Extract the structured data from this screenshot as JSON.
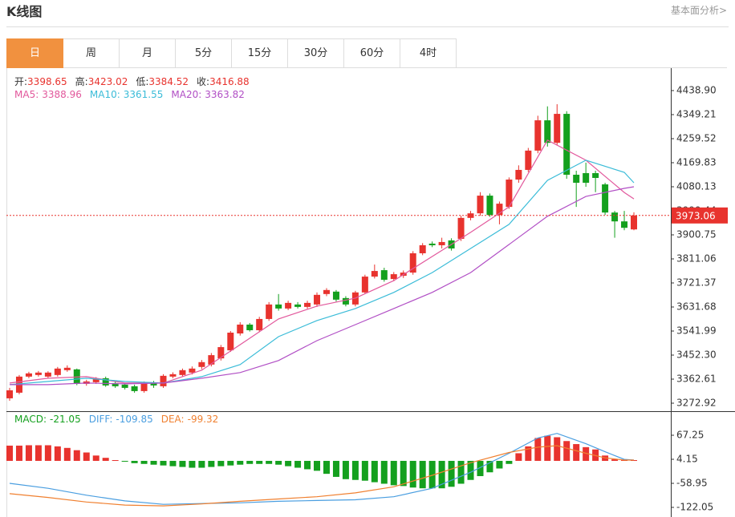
{
  "header": {
    "title": "K线图",
    "link": "基本面分析>"
  },
  "tabs": {
    "items": [
      "日",
      "周",
      "月",
      "5分",
      "15分",
      "30分",
      "60分",
      "4时"
    ],
    "active": 0
  },
  "chart_data": [
    {
      "type": "candlestick",
      "ohlc_info": [
        {
          "label": "开:",
          "value": 3398.65
        },
        {
          "label": "高:",
          "value": 3423.02
        },
        {
          "label": "低:",
          "value": 3384.52
        },
        {
          "label": "收:",
          "value": 3416.88
        }
      ],
      "open": [
        3291,
        3312,
        3372,
        3378,
        3372,
        3378,
        3396,
        3399,
        3345,
        3351,
        3366,
        3348,
        3342,
        3336,
        3318,
        3348,
        3336,
        3372,
        3378,
        3387,
        3408,
        3417,
        3440,
        3470,
        3533,
        3566,
        3545,
        3587,
        3641,
        3626,
        3641,
        3632,
        3641,
        3680,
        3689,
        3665,
        3641,
        3686,
        3745,
        3769,
        3736,
        3748,
        3760,
        3832,
        3868,
        3862,
        3880,
        3886,
        3964,
        3981,
        4047,
        3975,
        4005,
        4107,
        4143,
        4215,
        4328,
        4244,
        4352,
        4125,
        4131,
        4131,
        4089,
        3984,
        3951,
        3921
      ],
      "high": [
        3330,
        3378,
        3390,
        3393,
        3392,
        3408,
        3414,
        3402,
        3360,
        3370,
        3372,
        3354,
        3348,
        3342,
        3354,
        3356,
        3381,
        3388,
        3402,
        3410,
        3434,
        3460,
        3490,
        3542,
        3575,
        3572,
        3595,
        3650,
        3680,
        3655,
        3650,
        3655,
        3686,
        3702,
        3695,
        3672,
        3692,
        3752,
        3790,
        3778,
        3762,
        3768,
        3840,
        3870,
        3876,
        3890,
        3888,
        3972,
        3990,
        4060,
        4055,
        4025,
        4115,
        4160,
        4225,
        4345,
        4380,
        4388,
        4362,
        4140,
        4170,
        4140,
        4095,
        3990,
        3990,
        3985
      ],
      "low": [
        3282,
        3306,
        3366,
        3372,
        3366,
        3372,
        3390,
        3340,
        3338,
        3345,
        3334,
        3330,
        3324,
        3312,
        3312,
        3330,
        3330,
        3366,
        3372,
        3380,
        3400,
        3410,
        3432,
        3464,
        3525,
        3540,
        3538,
        3580,
        3618,
        3620,
        3626,
        3625,
        3632,
        3672,
        3652,
        3634,
        3634,
        3680,
        3738,
        3726,
        3728,
        3740,
        3752,
        3825,
        3855,
        3850,
        3842,
        3878,
        3955,
        3972,
        3968,
        3940,
        3998,
        4095,
        4135,
        4205,
        4230,
        4236,
        4110,
        4005,
        4080,
        4060,
        3975,
        3890,
        3918,
        3918
      ],
      "close": [
        3321,
        3372,
        3384,
        3387,
        3387,
        3402,
        3405,
        3345,
        3354,
        3363,
        3339,
        3336,
        3330,
        3318,
        3348,
        3339,
        3375,
        3381,
        3396,
        3402,
        3426,
        3452,
        3482,
        3536,
        3566,
        3545,
        3587,
        3641,
        3626,
        3647,
        3632,
        3647,
        3677,
        3695,
        3659,
        3641,
        3686,
        3745,
        3766,
        3733,
        3754,
        3760,
        3832,
        3862,
        3862,
        3874,
        3850,
        3964,
        3981,
        4047,
        3975,
        4017,
        4107,
        4143,
        4215,
        4328,
        4244,
        4352,
        4125,
        4095,
        4095,
        4113,
        3984,
        3951,
        3927,
        3973.06
      ],
      "up_color": "#e8332e",
      "down_color": "#14a01e",
      "ylim": [
        3243.0,
        4525.6
      ],
      "yticks": [
        {
          "value": 4438.9,
          "label": "4438.90"
        },
        4349.21,
        4259.52,
        4169.83,
        4080.13,
        3990.44,
        3900.75,
        3811.06,
        3721.37,
        3631.68,
        3541.99,
        {
          "value": 3452.3,
          "label": "3452.30"
        },
        3362.61,
        3272.92
      ],
      "last_price": 3973.06,
      "last_price_color": "#e8332e",
      "series": [
        {
          "name": "MA5:",
          "current": 3388.96,
          "color": "#e2589c",
          "x": [
            0,
            4,
            8,
            12,
            16,
            20,
            24,
            28,
            32,
            36,
            40,
            44,
            48,
            52,
            56,
            60,
            64,
            65
          ],
          "values": [
            3348,
            3366,
            3372,
            3348,
            3348,
            3396,
            3491,
            3587,
            3635,
            3665,
            3730,
            3820,
            3910,
            4005,
            4254,
            4179,
            4059,
            4035
          ]
        },
        {
          "name": "MA10:",
          "current": 3361.55,
          "color": "#3bbcd8",
          "x": [
            0,
            4,
            8,
            12,
            16,
            20,
            24,
            28,
            32,
            36,
            40,
            44,
            48,
            52,
            56,
            60,
            64,
            65
          ],
          "values": [
            3342,
            3354,
            3366,
            3354,
            3348,
            3372,
            3417,
            3521,
            3581,
            3626,
            3686,
            3760,
            3850,
            3940,
            4104,
            4179,
            4134,
            4095
          ]
        },
        {
          "name": "MA20:",
          "current": 3363.82,
          "color": "#b14fc5",
          "x": [
            0,
            4,
            8,
            12,
            16,
            20,
            24,
            28,
            32,
            36,
            40,
            44,
            48,
            52,
            56,
            60,
            64,
            65
          ],
          "values": [
            3342,
            3342,
            3348,
            3345,
            3348,
            3366,
            3387,
            3432,
            3506,
            3566,
            3626,
            3686,
            3760,
            3865,
            3970,
            4044,
            4074,
            4080
          ]
        }
      ]
    },
    {
      "type": "macd",
      "histogram": {
        "name": "MACD:",
        "current": -21.05,
        "color": "#14a01e",
        "up_color": "#e8332e",
        "down_color": "#14a01e",
        "values": [
          40,
          40,
          41,
          41,
          41,
          38,
          34,
          28,
          22,
          14,
          8,
          2,
          -2,
          -6,
          -8,
          -10,
          -12,
          -14,
          -16,
          -18,
          -18,
          -16,
          -14,
          -12,
          -10,
          -8,
          -8,
          -8,
          -10,
          -14,
          -18,
          -22,
          -26,
          -34,
          -42,
          -48,
          -50,
          -52,
          -56,
          -60,
          -64,
          -66,
          -70,
          -72,
          -72,
          -72,
          -68,
          -60,
          -50,
          -40,
          -30,
          -20,
          -8,
          20,
          38,
          60,
          66,
          62,
          52,
          44,
          36,
          30,
          14,
          4,
          2,
          2
        ]
      },
      "ylim": [
        -147.3,
        130.35
      ],
      "yticks": [
        67.25,
        4.15,
        -58.95,
        -122.05
      ],
      "series": [
        {
          "name": "DIFF:",
          "current": -109.85,
          "color": "#4a9ee0",
          "x": [
            0,
            4,
            8,
            12,
            16,
            20,
            24,
            28,
            32,
            36,
            40,
            44,
            48,
            52,
            55,
            57,
            60,
            62,
            64,
            65
          ],
          "values": [
            -59,
            -72,
            -90,
            -105,
            -114,
            -112,
            -110,
            -106,
            -104,
            -102,
            -94,
            -72,
            -30,
            20,
            60,
            72,
            45,
            24,
            4,
            2
          ]
        },
        {
          "name": "DEA:",
          "current": -99.32,
          "color": "#f08030",
          "x": [
            0,
            4,
            8,
            12,
            16,
            20,
            24,
            28,
            32,
            36,
            40,
            44,
            48,
            52,
            55,
            57,
            60,
            62,
            64,
            65
          ],
          "values": [
            -86,
            -96,
            -108,
            -116,
            -118,
            -113,
            -106,
            -100,
            -94,
            -84,
            -68,
            -38,
            -5,
            22,
            36,
            40,
            20,
            8,
            2,
            2
          ]
        }
      ]
    }
  ]
}
